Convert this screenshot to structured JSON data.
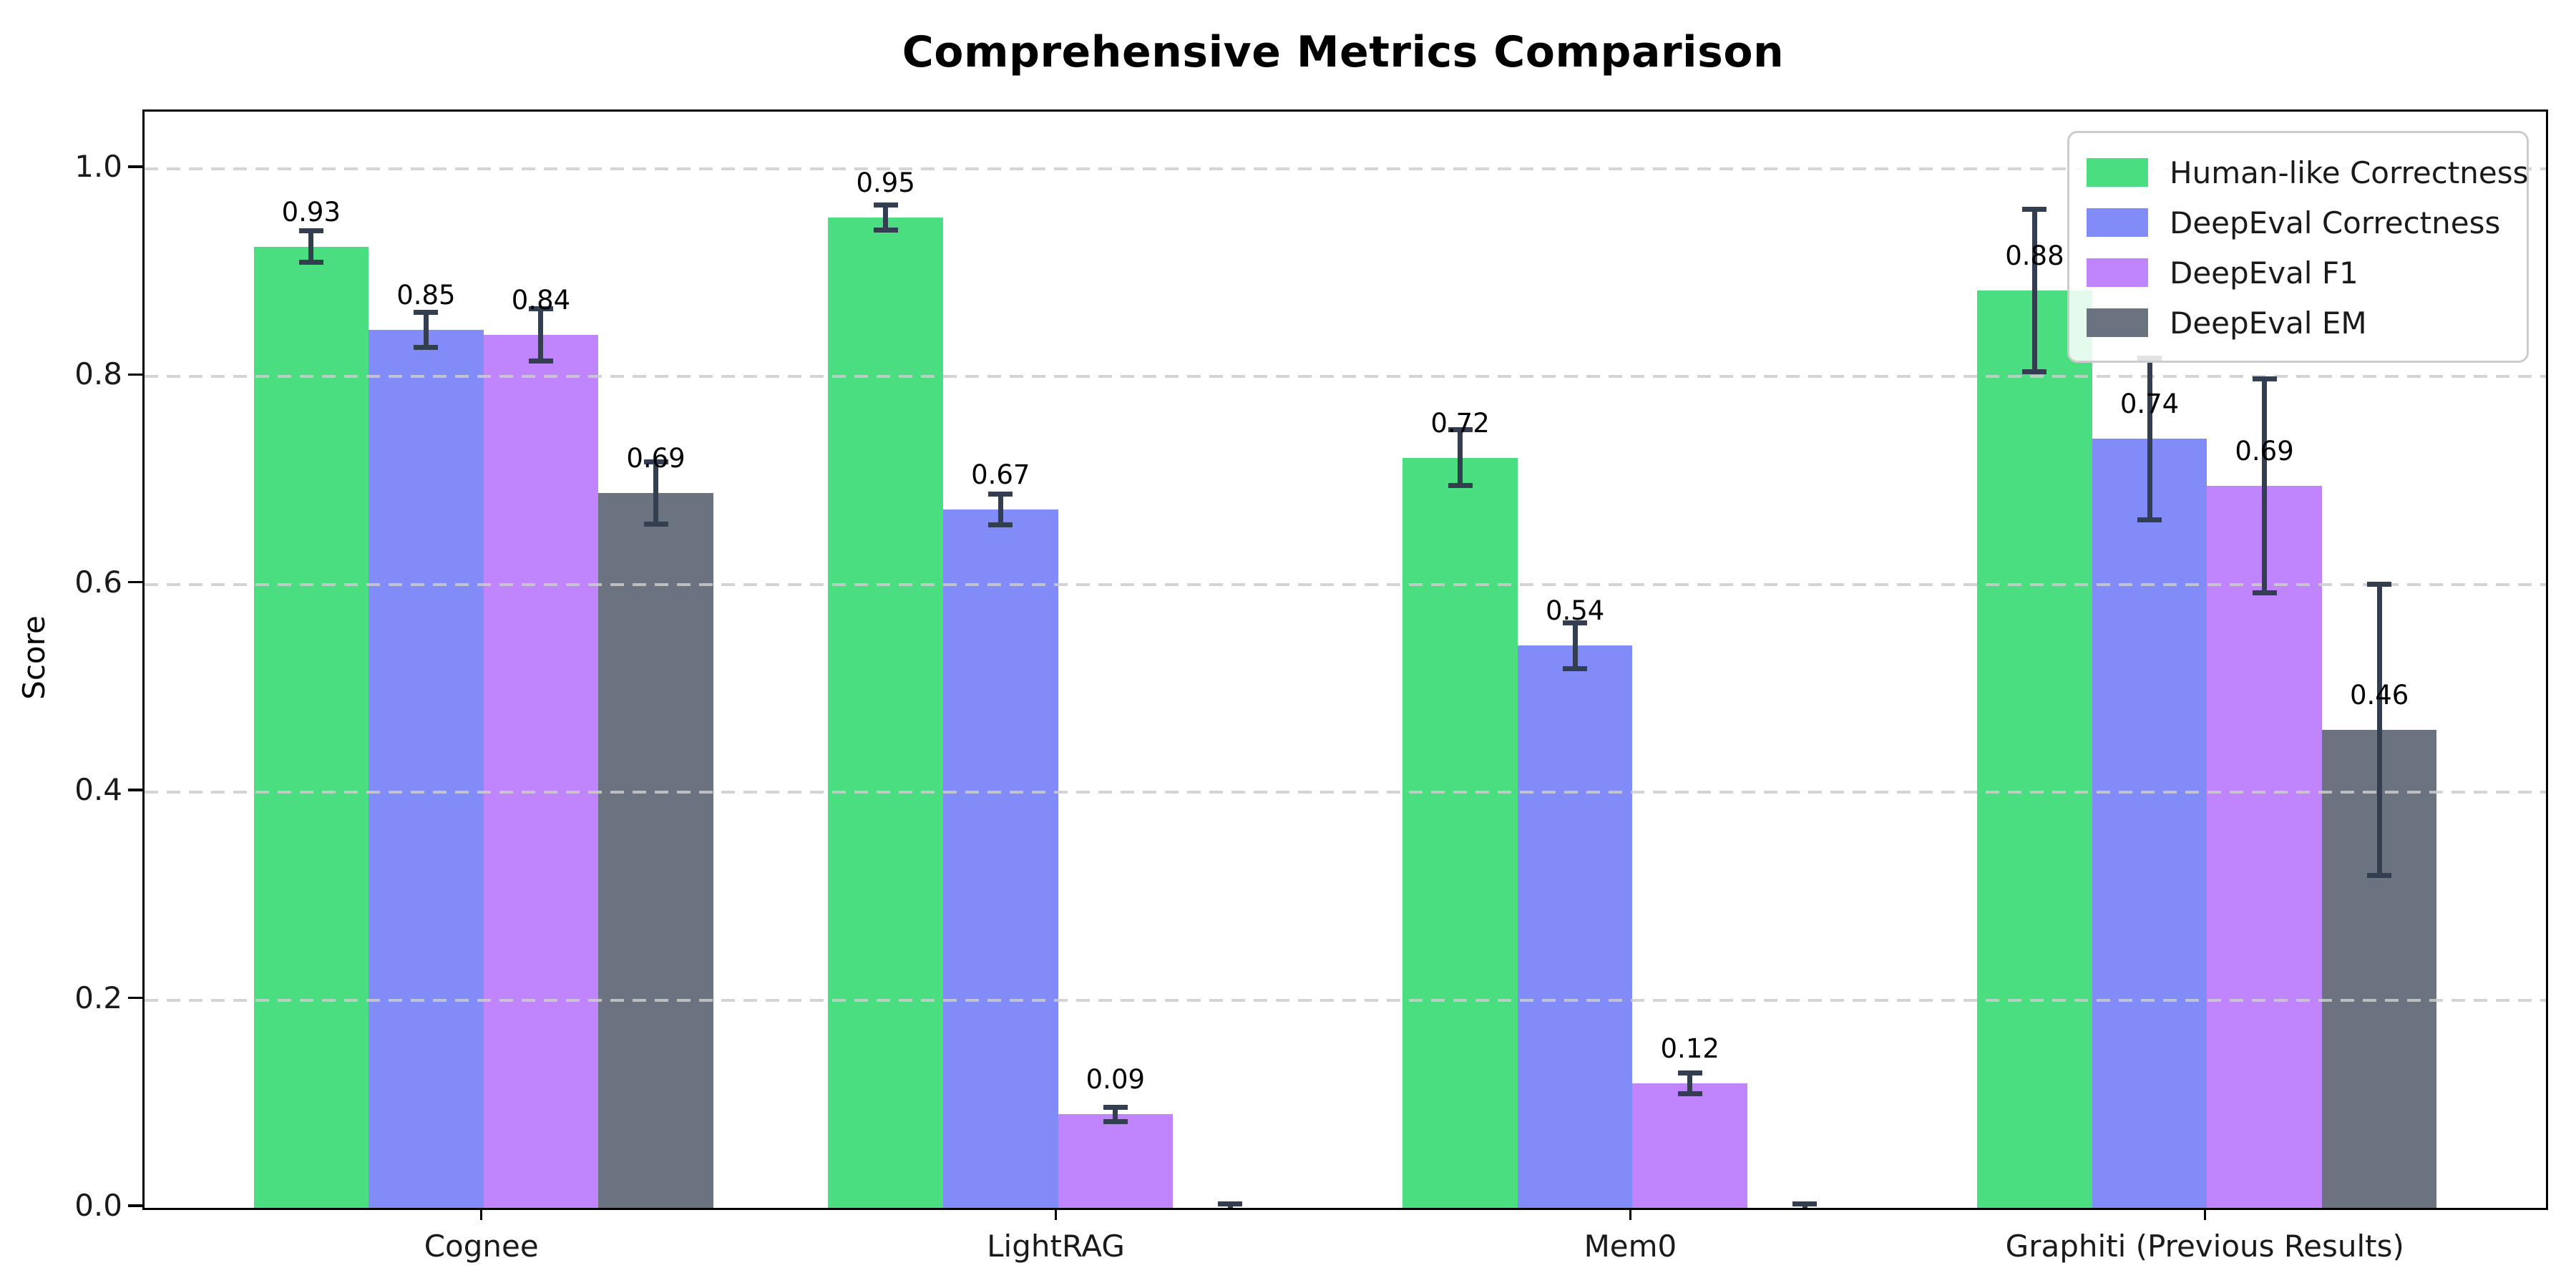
{
  "title": "Comprehensive Metrics Comparison",
  "ylabel": "Score",
  "chart_data": {
    "type": "bar",
    "title": "Comprehensive Metrics Comparison",
    "xlabel": "",
    "ylabel": "Score",
    "categories": [
      "Cognee",
      "LightRAG",
      "Mem0",
      "Graphiti (Previous Results)"
    ],
    "series": [
      {
        "name": "Human-like Correctness",
        "color": "#4ade80",
        "values": [
          0.925,
          0.953,
          0.722,
          0.883
        ],
        "errors": [
          0.015,
          0.012,
          0.027,
          0.078
        ],
        "labels": [
          "0.93",
          "0.95",
          "0.72",
          "0.88"
        ]
      },
      {
        "name": "DeepEval Correctness",
        "color": "#818cf8",
        "values": [
          0.845,
          0.672,
          0.541,
          0.74
        ],
        "errors": [
          0.017,
          0.015,
          0.022,
          0.078
        ],
        "labels": [
          "0.85",
          "0.67",
          "0.54",
          "0.74"
        ]
      },
      {
        "name": "DeepEval F1",
        "color": "#c084fc",
        "values": [
          0.84,
          0.09,
          0.12,
          0.695
        ],
        "errors": [
          0.025,
          0.007,
          0.01,
          0.103
        ],
        "labels": [
          "0.84",
          "0.09",
          "0.12",
          "0.69"
        ]
      },
      {
        "name": "DeepEval EM",
        "color": "#6b7280",
        "values": [
          0.688,
          0.0,
          0.0,
          0.46
        ],
        "errors": [
          0.03,
          0.004,
          0.004,
          0.14
        ],
        "labels": [
          "0.69",
          "",
          "",
          "0.46"
        ]
      }
    ],
    "yticks": [
      "0.0",
      "0.2",
      "0.4",
      "0.6",
      "0.8",
      "1.0"
    ],
    "ytick_values": [
      0.0,
      0.2,
      0.4,
      0.6,
      0.8,
      1.0
    ],
    "ylim": [
      0,
      1.055
    ],
    "grid": "horizontal-dashed",
    "gridline_color": "#cccccc",
    "legend_position": "upper-right",
    "error_bar_color": "#333e50",
    "axis_color": "#000000"
  }
}
